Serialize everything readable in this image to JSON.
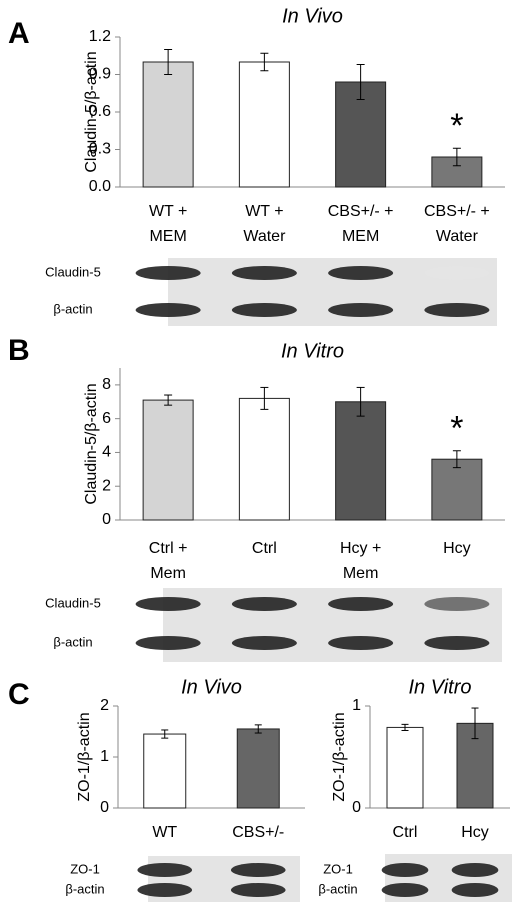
{
  "chart_data": [
    {
      "type": "bar",
      "panel": "A",
      "title": "In Vivo",
      "y_label": "Claudin-5/β-actin",
      "categories": [
        "WT +\nMEM",
        "WT +\nWater",
        "CBS+/- +\nMEM",
        "CBS+/- +\nWater"
      ],
      "values": [
        1.0,
        1.0,
        0.84,
        0.24
      ],
      "errors": [
        0.1,
        0.07,
        0.14,
        0.07
      ],
      "colors": [
        "#d4d4d4",
        "#ffffff",
        "#555555",
        "#777777"
      ],
      "ylim": [
        0,
        1.2
      ],
      "yticks": [
        {
          "value": 0,
          "label": "0.0"
        },
        0.3,
        0.6,
        0.9,
        1.2
      ],
      "annotations": [
        {
          "text": "*",
          "category": "CBS+/- +\nWater"
        }
      ],
      "blot_labels": [
        "Claudin-5",
        "β-actin"
      ]
    },
    {
      "type": "bar",
      "panel": "B",
      "title": "In Vitro",
      "y_label": "Claudin-5/β-actin",
      "categories": [
        "Ctrl +\nMem",
        "Ctrl",
        "Hcy +\nMem",
        "Hcy"
      ],
      "values": [
        7.1,
        7.2,
        7.0,
        3.6
      ],
      "errors": [
        0.3,
        0.65,
        0.85,
        0.5
      ],
      "colors": [
        "#d4d4d4",
        "#ffffff",
        "#555555",
        "#777777"
      ],
      "ylim": [
        0,
        9
      ],
      "yticks": [
        0,
        2,
        4,
        6,
        8
      ],
      "annotations": [
        {
          "text": "*",
          "category": "Hcy"
        }
      ],
      "blot_labels": [
        "Claudin-5",
        "β-actin"
      ]
    },
    {
      "type": "bar",
      "panel": "C",
      "title": "In Vivo",
      "y_label": "ZO-1/β-actin",
      "categories": [
        "WT",
        "CBS+/-"
      ],
      "values": [
        1.45,
        1.55
      ],
      "errors": [
        0.08,
        0.08
      ],
      "colors": [
        "#ffffff",
        "#666666"
      ],
      "ylim": [
        0,
        2
      ],
      "yticks": [
        0,
        1,
        2
      ],
      "blot_labels": [
        "ZO-1",
        "β-actin"
      ]
    },
    {
      "type": "bar",
      "title": "In Vitro",
      "y_label": "ZO-1/β-actin",
      "categories": [
        "Ctrl",
        "Hcy"
      ],
      "values": [
        0.79,
        0.83
      ],
      "errors": [
        0.03,
        0.15
      ],
      "colors": [
        "#ffffff",
        "#666666"
      ],
      "ylim": [
        0,
        1
      ],
      "yticks": [
        0,
        1
      ],
      "blot_labels": [
        "ZO-1",
        "β-actin"
      ]
    }
  ]
}
